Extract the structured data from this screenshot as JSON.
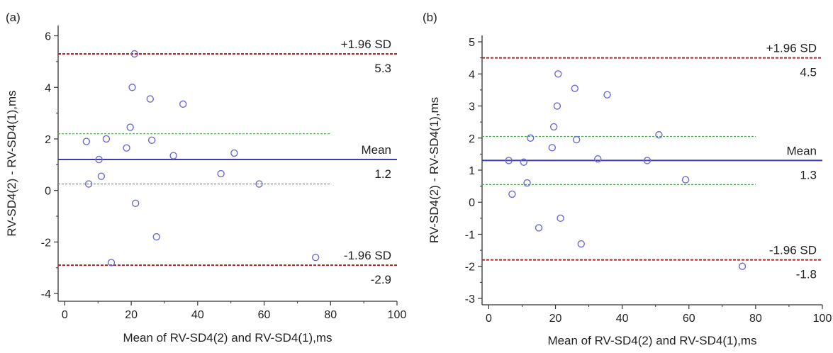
{
  "chart_data": [
    {
      "panel_label": "(a)",
      "type": "scatter",
      "xlabel": "Mean of RV-SD4(2) and RV-SD4(1),ms",
      "ylabel": "RV-SD4(2) - RV-SD4(1),ms",
      "xlim": [
        -2,
        100
      ],
      "ylim": [
        -4.3,
        6.4
      ],
      "xticks": [
        0,
        20,
        40,
        60,
        80,
        100
      ],
      "yticks": [
        -4,
        -2,
        0,
        2,
        4,
        6
      ],
      "points": [
        {
          "x": 6.5,
          "y": 1.9
        },
        {
          "x": 7.2,
          "y": 0.25
        },
        {
          "x": 10.3,
          "y": 1.2
        },
        {
          "x": 11.0,
          "y": 0.55
        },
        {
          "x": 12.5,
          "y": 2.0
        },
        {
          "x": 14.0,
          "y": -2.8
        },
        {
          "x": 18.6,
          "y": 1.65
        },
        {
          "x": 19.7,
          "y": 2.45
        },
        {
          "x": 20.3,
          "y": 4.0
        },
        {
          "x": 21.0,
          "y": 5.3
        },
        {
          "x": 21.3,
          "y": -0.5
        },
        {
          "x": 25.7,
          "y": 3.55
        },
        {
          "x": 26.2,
          "y": 1.95
        },
        {
          "x": 27.6,
          "y": -1.8
        },
        {
          "x": 32.7,
          "y": 1.35
        },
        {
          "x": 35.6,
          "y": 3.35
        },
        {
          "x": 47.0,
          "y": 0.65
        },
        {
          "x": 51.0,
          "y": 1.45
        },
        {
          "x": 58.5,
          "y": 0.25
        },
        {
          "x": 75.5,
          "y": -2.6
        }
      ],
      "lines": {
        "mean": {
          "label": "Mean",
          "value_label": "1.2",
          "y": 1.2,
          "x_end": 100,
          "color": "#3b3bb0"
        },
        "upper_loa": {
          "label": "+1.96 SD",
          "value_label": "5.3",
          "y": 5.3,
          "x_end": 100,
          "color": "#b22222"
        },
        "lower_loa": {
          "label": "-1.96 SD",
          "value_label": "-2.9",
          "y": -2.9,
          "x_end": 100,
          "color": "#b22222"
        },
        "mean_ci": {
          "y": [
            0.25,
            2.2
          ],
          "x_end": 80,
          "color": "#4aaa4a"
        }
      }
    },
    {
      "panel_label": "(b)",
      "type": "scatter",
      "xlabel": "Mean of RV-SD4(2) and RV-SD4(1),ms",
      "ylabel": "RV-SD4(2) - RV-SD4(1),ms",
      "xlim": [
        -2,
        100
      ],
      "ylim": [
        -3.2,
        5.2
      ],
      "xticks": [
        0,
        20,
        40,
        60,
        80,
        100
      ],
      "yticks": [
        -3,
        -2,
        -1,
        0,
        1,
        2,
        3,
        4,
        5
      ],
      "points": [
        {
          "x": 6.0,
          "y": 1.3
        },
        {
          "x": 7.0,
          "y": 0.25
        },
        {
          "x": 10.5,
          "y": 1.25
        },
        {
          "x": 11.5,
          "y": 0.6
        },
        {
          "x": 12.5,
          "y": 2.0
        },
        {
          "x": 15.0,
          "y": -0.8
        },
        {
          "x": 19.0,
          "y": 1.7
        },
        {
          "x": 19.5,
          "y": 2.35
        },
        {
          "x": 20.5,
          "y": 3.0
        },
        {
          "x": 20.8,
          "y": 4.0
        },
        {
          "x": 21.5,
          "y": -0.5
        },
        {
          "x": 25.8,
          "y": 3.55
        },
        {
          "x": 26.3,
          "y": 1.95
        },
        {
          "x": 27.7,
          "y": -1.3
        },
        {
          "x": 32.7,
          "y": 1.35
        },
        {
          "x": 35.5,
          "y": 3.35
        },
        {
          "x": 47.5,
          "y": 1.3
        },
        {
          "x": 51.0,
          "y": 2.1
        },
        {
          "x": 59.0,
          "y": 0.7
        },
        {
          "x": 76.0,
          "y": -2.0
        }
      ],
      "lines": {
        "mean": {
          "label": "Mean",
          "value_label": "1.3",
          "y": 1.3,
          "x_end": 100,
          "color": "#3b3bb0"
        },
        "upper_loa": {
          "label": "+1.96 SD",
          "value_label": "4.5",
          "y": 4.5,
          "x_end": 100,
          "color": "#b22222"
        },
        "lower_loa": {
          "label": "-1.96 SD",
          "value_label": "-1.8",
          "y": -1.8,
          "x_end": 100,
          "color": "#b22222"
        },
        "mean_ci": {
          "y": [
            0.55,
            2.05
          ],
          "x_end": 80,
          "color": "#4aaa4a"
        }
      }
    }
  ],
  "colors": {
    "marker": "#6a6ad8",
    "axis": "#333333"
  }
}
